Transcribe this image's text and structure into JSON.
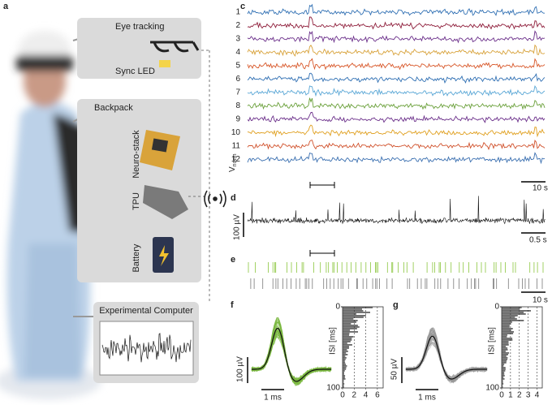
{
  "panel_a": {
    "label": "a",
    "eye_tracking": "Eye tracking",
    "sync_led": "Sync LED",
    "backpack": "Backpack",
    "neuro_stack": "Neuro-stack",
    "tpu": "TPU",
    "battery": "Battery",
    "experimental_computer": "Experimental Computer"
  },
  "panel_c": {
    "label": "c",
    "channels": [
      {
        "label": "1",
        "color": "#2f6fb3"
      },
      {
        "label": "2",
        "color": "#8e1d3a"
      },
      {
        "label": "3",
        "color": "#6b2f8a"
      },
      {
        "label": "4",
        "color": "#d8a23a"
      },
      {
        "label": "5",
        "color": "#d8582a"
      },
      {
        "label": "6",
        "color": "#2f6fb3"
      },
      {
        "label": "7",
        "color": "#5aa7d6"
      },
      {
        "label": "8",
        "color": "#6aa03a"
      },
      {
        "label": "9",
        "color": "#6b2f8a"
      },
      {
        "label": "10",
        "color": "#e0a020"
      },
      {
        "label": "11",
        "color": "#d0502a"
      },
      {
        "label": "12",
        "color": "#3a6fb0"
      }
    ],
    "y_label": "V",
    "y_label_sub": "norm",
    "scale_bar": "10 s"
  },
  "panel_d": {
    "label": "d",
    "scale_y": "100 µV",
    "scale_x": "0.5 s"
  },
  "panel_e": {
    "label": "e",
    "scale_x": "10 s",
    "colors": [
      "#8cc63f",
      "#7a7a7a"
    ]
  },
  "panel_f": {
    "label": "f",
    "scale_y": "100 µV",
    "scale_x": "1 ms",
    "isi_label": "ISI [ms]",
    "isi_ylim": [
      0,
      100
    ],
    "isi_yticks": [
      0,
      100
    ],
    "isi_xlim": [
      0,
      7
    ],
    "isi_xticks": [
      0,
      2,
      4,
      6
    ],
    "color": "#7ab840"
  },
  "panel_g": {
    "label": "g",
    "scale_y": "50 µV",
    "scale_x": "1 ms",
    "isi_label": "ISI [ms]",
    "isi_ylim": [
      0,
      100
    ],
    "isi_yticks": [
      0,
      100
    ],
    "isi_xlim": [
      0,
      4.6
    ],
    "isi_xticks": [
      0,
      1,
      2,
      3,
      4
    ],
    "color": "#9a9a9a"
  }
}
